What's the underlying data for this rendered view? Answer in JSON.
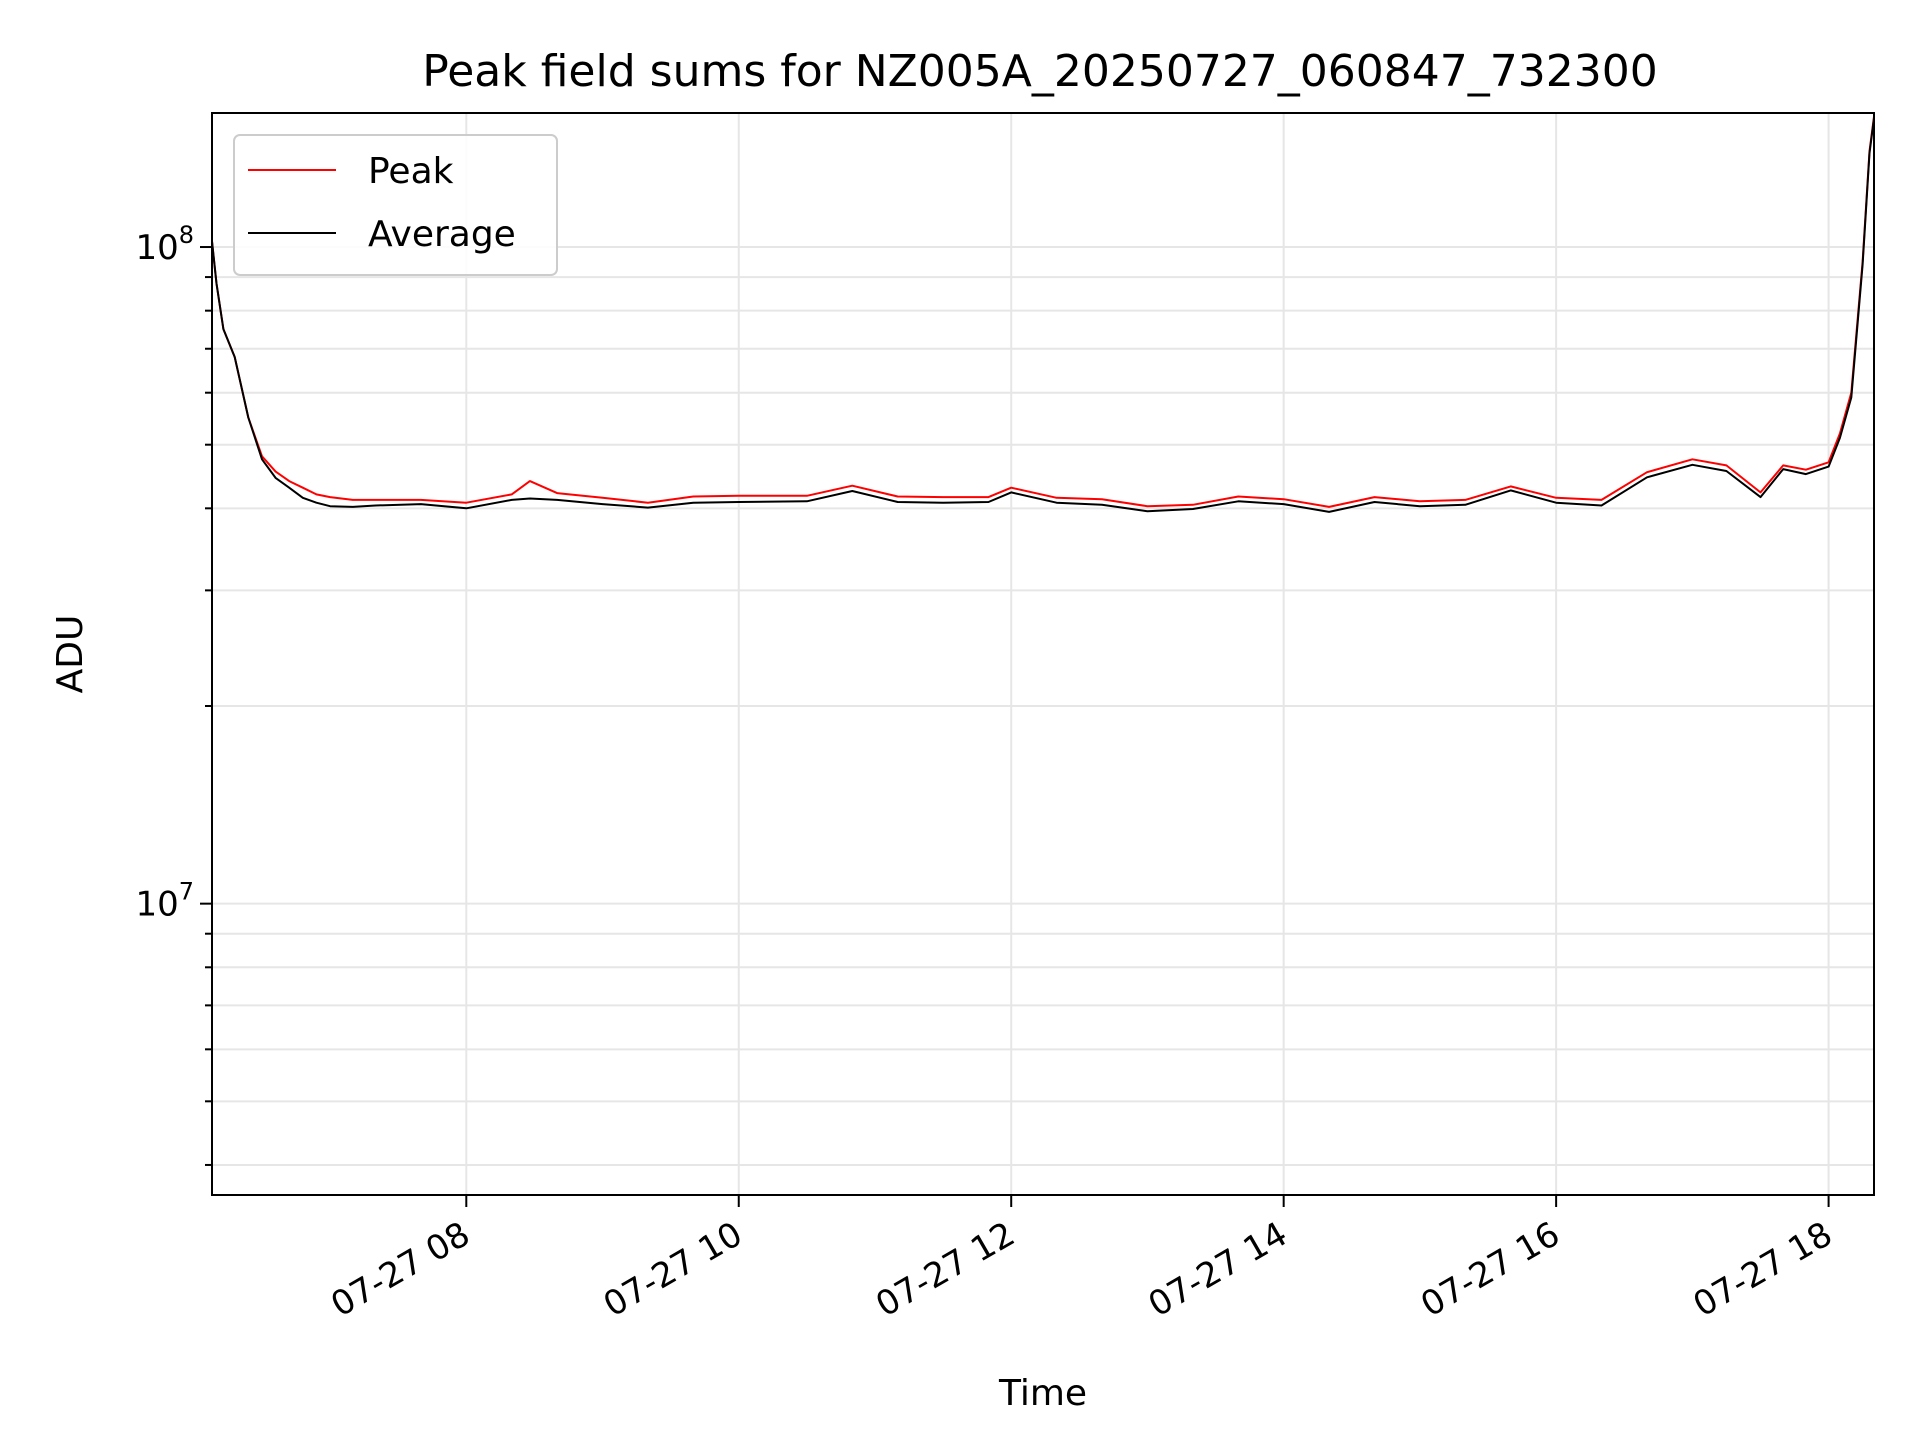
{
  "chart_data": {
    "type": "line",
    "title": "Peak field sums for NZ005A_20250727_060847_732300",
    "xlabel": "Time",
    "ylabel": "ADU",
    "y_scale": "log",
    "ylim": [
      3600000,
      160000000
    ],
    "xlim": [
      "07-27 06:08",
      "07-27 18:20"
    ],
    "x_ticks": [
      "07-27 08",
      "07-27 10",
      "07-27 12",
      "07-27 14",
      "07-27 16",
      "07-27 18"
    ],
    "y_ticks": [
      {
        "value": 100000000,
        "base": "10",
        "exp": "8"
      },
      {
        "value": 10000000,
        "base": "10",
        "exp": "7"
      }
    ],
    "grid": true,
    "legend_position": "top-left",
    "colors": {
      "Peak": "#ff0000",
      "Average": "#000000",
      "grid": "#e6e6e6"
    },
    "series": [
      {
        "name": "Peak",
        "x": [
          "07-27 06:08",
          "07-27 06:10",
          "07-27 06:13",
          "07-27 06:18",
          "07-27 06:24",
          "07-27 06:30",
          "07-27 06:36",
          "07-27 06:42",
          "07-27 06:48",
          "07-27 06:54",
          "07-27 07:00",
          "07-27 07:10",
          "07-27 07:20",
          "07-27 07:40",
          "07-27 08:00",
          "07-27 08:20",
          "07-27 08:28",
          "07-27 08:40",
          "07-27 09:00",
          "07-27 09:20",
          "07-27 09:40",
          "07-27 10:00",
          "07-27 10:30",
          "07-27 10:50",
          "07-27 11:10",
          "07-27 11:30",
          "07-27 11:50",
          "07-27 12:00",
          "07-27 12:20",
          "07-27 12:40",
          "07-27 13:00",
          "07-27 13:20",
          "07-27 13:40",
          "07-27 14:00",
          "07-27 14:20",
          "07-27 14:40",
          "07-27 15:00",
          "07-27 15:20",
          "07-27 15:40",
          "07-27 16:00",
          "07-27 16:20",
          "07-27 16:40",
          "07-27 17:00",
          "07-27 17:15",
          "07-27 17:30",
          "07-27 17:40",
          "07-27 17:50",
          "07-27 18:00",
          "07-27 18:05",
          "07-27 18:10",
          "07-27 18:15",
          "07-27 18:18",
          "07-27 18:20"
        ],
        "y": [
          102000000,
          88000000,
          75000000,
          68000000,
          55000000,
          48000000,
          45500000,
          44000000,
          43000000,
          42000000,
          41600000,
          41200000,
          41200000,
          41200000,
          40800000,
          42000000,
          44000000,
          42200000,
          41500000,
          40800000,
          41700000,
          41800000,
          41800000,
          43300000,
          41700000,
          41600000,
          41600000,
          43000000,
          41500000,
          41300000,
          40300000,
          40500000,
          41700000,
          41300000,
          40200000,
          41600000,
          41000000,
          41200000,
          43200000,
          41500000,
          41200000,
          45400000,
          47500000,
          46500000,
          42300000,
          46500000,
          45800000,
          47000000,
          52000000,
          60000000,
          95000000,
          140000000,
          158000000
        ]
      },
      {
        "name": "Average",
        "x": [
          "07-27 06:08",
          "07-27 06:10",
          "07-27 06:13",
          "07-27 06:18",
          "07-27 06:24",
          "07-27 06:30",
          "07-27 06:36",
          "07-27 06:42",
          "07-27 06:48",
          "07-27 06:54",
          "07-27 07:00",
          "07-27 07:10",
          "07-27 07:20",
          "07-27 07:40",
          "07-27 08:00",
          "07-27 08:20",
          "07-27 08:28",
          "07-27 08:40",
          "07-27 09:00",
          "07-27 09:20",
          "07-27 09:40",
          "07-27 10:00",
          "07-27 10:30",
          "07-27 10:50",
          "07-27 11:10",
          "07-27 11:30",
          "07-27 11:50",
          "07-27 12:00",
          "07-27 12:20",
          "07-27 12:40",
          "07-27 13:00",
          "07-27 13:20",
          "07-27 13:40",
          "07-27 14:00",
          "07-27 14:20",
          "07-27 14:40",
          "07-27 15:00",
          "07-27 15:20",
          "07-27 15:40",
          "07-27 16:00",
          "07-27 16:20",
          "07-27 16:40",
          "07-27 17:00",
          "07-27 17:15",
          "07-27 17:30",
          "07-27 17:40",
          "07-27 17:50",
          "07-27 18:00",
          "07-27 18:05",
          "07-27 18:10",
          "07-27 18:15",
          "07-27 18:18",
          "07-27 18:20"
        ],
        "y": [
          102000000,
          88000000,
          75000000,
          68000000,
          55000000,
          47500000,
          44500000,
          43000000,
          41500000,
          40800000,
          40300000,
          40200000,
          40400000,
          40600000,
          40000000,
          41200000,
          41400000,
          41200000,
          40600000,
          40100000,
          40800000,
          40900000,
          41000000,
          42500000,
          40900000,
          40800000,
          40900000,
          42300000,
          40800000,
          40500000,
          39600000,
          39900000,
          41000000,
          40600000,
          39500000,
          40900000,
          40300000,
          40500000,
          42600000,
          40800000,
          40400000,
          44600000,
          46600000,
          45600000,
          41600000,
          45900000,
          45100000,
          46300000,
          51200000,
          59000000,
          94000000,
          139000000,
          157000000
        ]
      }
    ]
  }
}
